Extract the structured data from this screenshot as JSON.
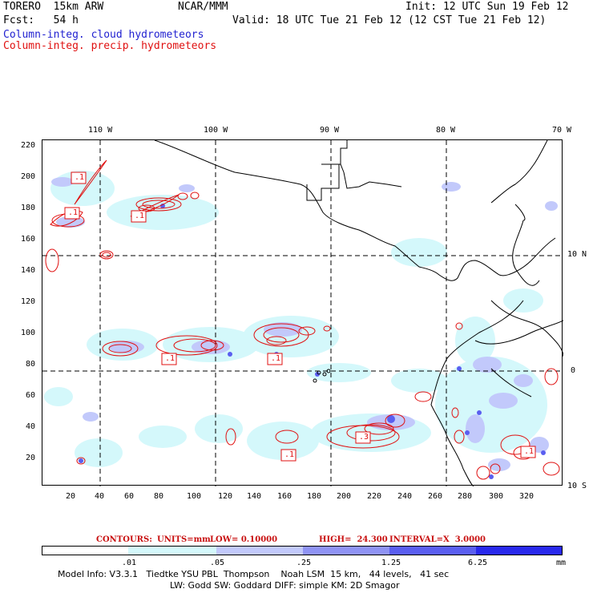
{
  "header": {
    "model": "TORERO  15km ARW",
    "center": "NCAR/MMM",
    "init": "Init: 12 UTC Sun 19 Feb 12",
    "fcst": "Fcst:   54 h",
    "valid": "Valid: 18 UTC Tue 21 Feb 12 (12 CST Tue 21 Feb 12)",
    "line_cloud": "Column-integ. cloud hydrometeors",
    "line_precip": "Column-integ. precip. hydrometeors"
  },
  "colors": {
    "cloud_text": "#1f1fd0",
    "precip_text": "#e01010",
    "contour": "#e01010"
  },
  "map": {
    "lon_labels": [
      "110 W",
      "100 W",
      "90 W",
      "80 W",
      "70 W"
    ],
    "lat_labels": [
      "10 N",
      "0",
      "10 S"
    ],
    "y_ticks": [
      "220",
      "200",
      "180",
      "160",
      "140",
      "120",
      "100",
      "80",
      "60",
      "40",
      "20"
    ],
    "x_ticks": [
      "20",
      "40",
      "60",
      "80",
      "100",
      "120",
      "140",
      "160",
      "180",
      "200",
      "220",
      "240",
      "260",
      "280",
      "300",
      "320"
    ],
    "contour_labels": [
      ".1",
      ".1",
      ".1",
      ".1",
      ".1",
      ".1",
      ".3",
      ".1"
    ]
  },
  "contours_info": {
    "label": "CONTOURS:",
    "units": "UNITS=mm",
    "low": "LOW= 0.10000",
    "high": "HIGH=  24.300",
    "interval": "INTERVAL=X  3.0000"
  },
  "colorbar": {
    "colors": [
      "#ffffff",
      "#d4f8fb",
      "#c2c9fb",
      "#8f93f4",
      "#5a5ef0",
      "#2828ec"
    ],
    "labels": [
      ".01",
      ".05",
      ".25",
      "1.25",
      "6.25"
    ],
    "unit": "mm"
  },
  "footer": {
    "line1": "Model Info: V3.3.1   Tiedtke YSU PBL  Thompson    Noah LSM  15 km,   44 levels,   41 sec",
    "line2": "LW: Godd SW: Goddard DIFF: simple KM: 2D Smagor"
  }
}
